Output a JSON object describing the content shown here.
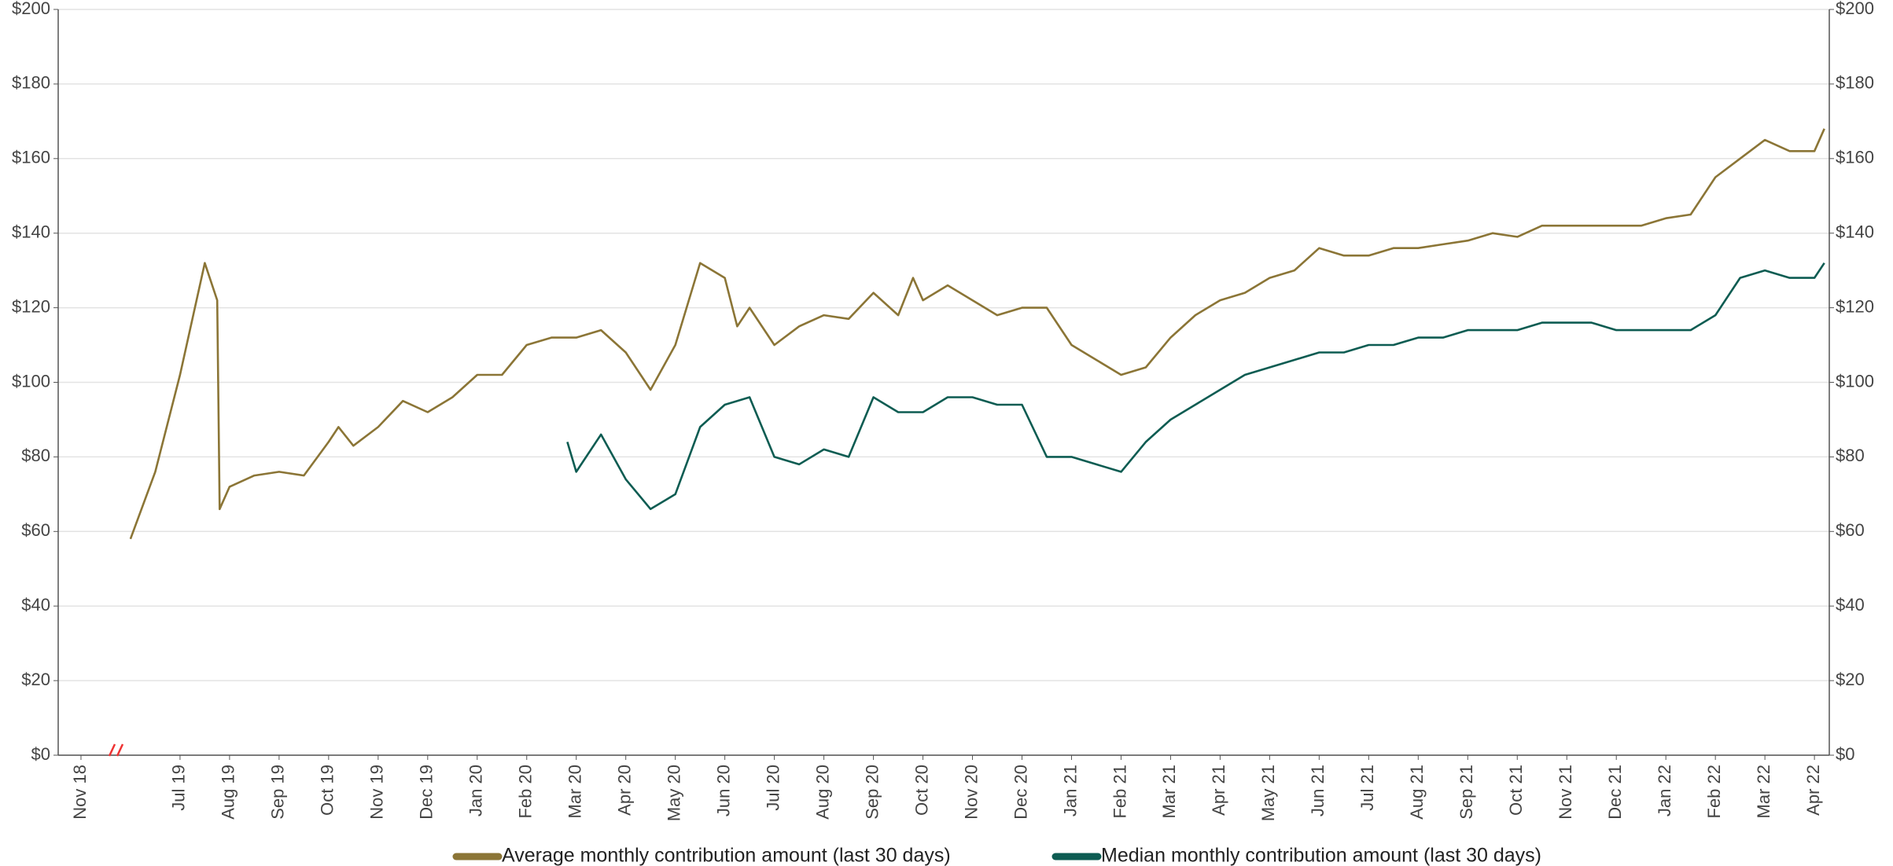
{
  "chart_data": {
    "type": "line",
    "xlim": [
      -0.46,
      35.3
    ],
    "xticks": [
      {
        "value": 0,
        "label": "Nov 18"
      },
      {
        "value": 2,
        "label": "Jul 19"
      },
      {
        "value": 3,
        "label": "Aug 19"
      },
      {
        "value": 4,
        "label": "Sep 19"
      },
      {
        "value": 5,
        "label": "Oct 19"
      },
      {
        "value": 6,
        "label": "Nov 19"
      },
      {
        "value": 7,
        "label": "Dec 19"
      },
      {
        "value": 8,
        "label": "Jan 20"
      },
      {
        "value": 9,
        "label": "Feb 20"
      },
      {
        "value": 10,
        "label": "Mar 20"
      },
      {
        "value": 11,
        "label": "Apr 20"
      },
      {
        "value": 12,
        "label": "May 20"
      },
      {
        "value": 13,
        "label": "Jun 20"
      },
      {
        "value": 14,
        "label": "Jul 20"
      },
      {
        "value": 15,
        "label": "Aug 20"
      },
      {
        "value": 16,
        "label": "Sep 20"
      },
      {
        "value": 17,
        "label": "Oct 20"
      },
      {
        "value": 18,
        "label": "Nov 20"
      },
      {
        "value": 19,
        "label": "Dec 20"
      },
      {
        "value": 20,
        "label": "Jan 21"
      },
      {
        "value": 21,
        "label": "Feb 21"
      },
      {
        "value": 22,
        "label": "Mar 21"
      },
      {
        "value": 23,
        "label": "Apr 21"
      },
      {
        "value": 24,
        "label": "May 21"
      },
      {
        "value": 25,
        "label": "Jun 21"
      },
      {
        "value": 26,
        "label": "Jul 21"
      },
      {
        "value": 27,
        "label": "Aug 21"
      },
      {
        "value": 28,
        "label": "Sep 21"
      },
      {
        "value": 29,
        "label": "Oct 21"
      },
      {
        "value": 30,
        "label": "Nov 21"
      },
      {
        "value": 31,
        "label": "Dec 21"
      },
      {
        "value": 32,
        "label": "Jan 22"
      },
      {
        "value": 33,
        "label": "Feb 22"
      },
      {
        "value": 34,
        "label": "Mar 22"
      },
      {
        "value": 35,
        "label": "Apr 22"
      }
    ],
    "ylim": [
      0,
      200
    ],
    "yticks": [
      {
        "value": 0,
        "label": "$0"
      },
      {
        "value": 20,
        "label": "$20"
      },
      {
        "value": 40,
        "label": "$40"
      },
      {
        "value": 60,
        "label": "$60"
      },
      {
        "value": 80,
        "label": "$80"
      },
      {
        "value": 100,
        "label": "$100"
      },
      {
        "value": 120,
        "label": "$120"
      },
      {
        "value": 140,
        "label": "$140"
      },
      {
        "value": 160,
        "label": "$160"
      },
      {
        "value": 180,
        "label": "$180"
      },
      {
        "value": 200,
        "label": "$200"
      }
    ],
    "y2lim": [
      0,
      200
    ],
    "y2ticks": [
      {
        "value": 0,
        "label": "$0"
      },
      {
        "value": 20,
        "label": "$20"
      },
      {
        "value": 40,
        "label": "$40"
      },
      {
        "value": 60,
        "label": "$60"
      },
      {
        "value": 80,
        "label": "$80"
      },
      {
        "value": 100,
        "label": "$100"
      },
      {
        "value": 120,
        "label": "$120"
      },
      {
        "value": 140,
        "label": "$140"
      },
      {
        "value": 160,
        "label": "$160"
      },
      {
        "value": 180,
        "label": "$180"
      },
      {
        "value": 200,
        "label": "$200"
      }
    ],
    "grid": true,
    "series": [
      {
        "name": "Average monthly contribution amount (last 30 days)",
        "color": "#8b7536",
        "x": [
          1.0,
          1.5,
          2.0,
          2.5,
          2.75,
          2.8,
          3.0,
          3.5,
          4.0,
          4.5,
          5.0,
          5.2,
          5.5,
          6.0,
          6.5,
          7.0,
          7.5,
          8.0,
          8.5,
          9.0,
          9.5,
          10.0,
          10.5,
          11.0,
          11.5,
          12.0,
          12.5,
          13.0,
          13.25,
          13.5,
          14.0,
          14.5,
          15.0,
          15.5,
          16.0,
          16.5,
          16.8,
          17.0,
          17.5,
          18.0,
          18.5,
          19.0,
          19.5,
          20.0,
          20.5,
          21.0,
          21.5,
          22.0,
          22.5,
          23.0,
          23.5,
          24.0,
          24.5,
          25.0,
          25.5,
          26.0,
          26.5,
          27.0,
          27.5,
          28.0,
          28.5,
          29.0,
          29.5,
          30.0,
          30.5,
          31.0,
          31.5,
          32.0,
          32.5,
          33.0,
          33.5,
          34.0,
          34.5,
          35.0,
          35.2
        ],
        "values": [
          58,
          76,
          102,
          132,
          122,
          66,
          72,
          75,
          76,
          75,
          84,
          88,
          83,
          88,
          95,
          92,
          96,
          102,
          102,
          110,
          112,
          112,
          114,
          108,
          98,
          110,
          132,
          128,
          115,
          120,
          110,
          115,
          118,
          117,
          124,
          118,
          128,
          122,
          126,
          122,
          118,
          120,
          120,
          110,
          106,
          102,
          104,
          112,
          118,
          122,
          124,
          128,
          130,
          136,
          134,
          134,
          136,
          136,
          137,
          138,
          140,
          139,
          142,
          142,
          142,
          142,
          142,
          144,
          145,
          155,
          160,
          165,
          162,
          162,
          168
        ]
      },
      {
        "name": "Median monthly contribution amount (last 30 days)",
        "color": "#0d5c52",
        "x": [
          9.82,
          10.0,
          10.5,
          11.0,
          11.5,
          12.0,
          12.5,
          13.0,
          13.5,
          14.0,
          14.5,
          15.0,
          15.5,
          16.0,
          16.5,
          17.0,
          17.5,
          18.0,
          18.5,
          19.0,
          19.5,
          20.0,
          20.5,
          21.0,
          21.5,
          22.0,
          22.5,
          23.0,
          23.5,
          24.0,
          24.5,
          25.0,
          25.5,
          26.0,
          26.5,
          27.0,
          27.5,
          28.0,
          28.5,
          29.0,
          29.5,
          30.0,
          30.5,
          31.0,
          31.5,
          32.0,
          32.5,
          33.0,
          33.5,
          34.0,
          34.5,
          35.0,
          35.2
        ],
        "values": [
          84,
          76,
          86,
          74,
          66,
          70,
          88,
          94,
          96,
          80,
          78,
          82,
          80,
          96,
          92,
          92,
          96,
          96,
          94,
          94,
          80,
          80,
          78,
          76,
          84,
          90,
          94,
          98,
          102,
          104,
          106,
          108,
          108,
          110,
          110,
          112,
          112,
          114,
          114,
          114,
          116,
          116,
          116,
          114,
          114,
          114,
          114,
          118,
          128,
          130,
          128,
          128,
          132
        ]
      }
    ]
  }
}
